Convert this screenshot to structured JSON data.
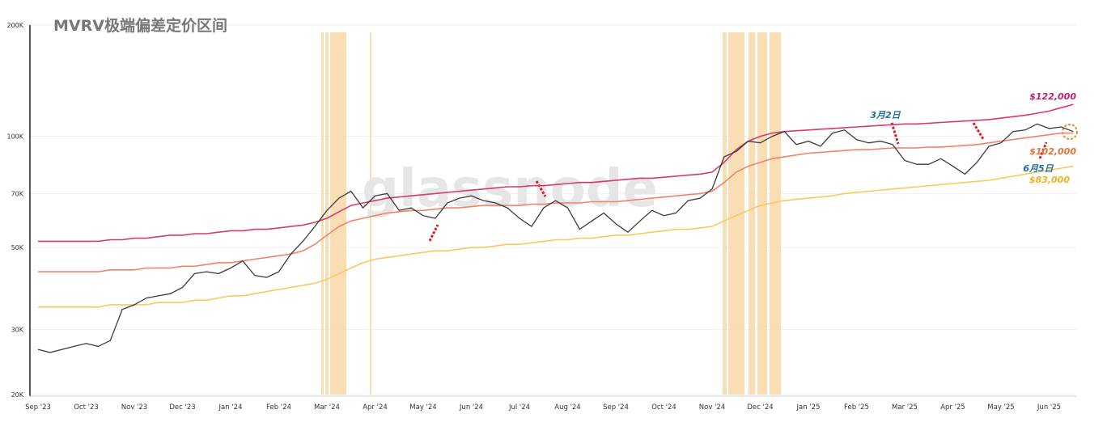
{
  "chart_data": {
    "type": "line",
    "title": "MVRV极端偏差定价区间",
    "watermark": "glassnode",
    "log_scale": true,
    "grid": true,
    "ylim": [
      20000,
      200000
    ],
    "yticks": [
      {
        "value": 20000,
        "label": "20K"
      },
      {
        "value": 30000,
        "label": "30K"
      },
      {
        "value": 50000,
        "label": "50K"
      },
      {
        "value": 70000,
        "label": "70K"
      },
      {
        "value": 100000,
        "label": "100K"
      },
      {
        "value": 200000,
        "label": "200K"
      }
    ],
    "categories": [
      "Sep '23",
      null,
      null,
      null,
      "Oct '23",
      null,
      null,
      null,
      "Nov '23",
      null,
      null,
      null,
      "Dec '23",
      null,
      null,
      null,
      "Jan '24",
      null,
      null,
      null,
      "Feb '24",
      null,
      null,
      null,
      "Mar '24",
      null,
      null,
      null,
      "Apr '24",
      null,
      null,
      null,
      "May '24",
      null,
      null,
      null,
      "Jun '24",
      null,
      null,
      null,
      "Jul '24",
      null,
      null,
      null,
      "Aug '24",
      null,
      null,
      null,
      "Sep '24",
      null,
      null,
      null,
      "Oct '24",
      null,
      null,
      null,
      "Nov '24",
      null,
      null,
      null,
      "Dec '24",
      null,
      null,
      null,
      "Jan '25",
      null,
      null,
      null,
      "Feb '25",
      null,
      null,
      null,
      "Mar '25",
      null,
      null,
      null,
      "Apr '25",
      null,
      null,
      null,
      "May '25",
      null,
      null,
      null,
      "Jun '25",
      null,
      null
    ],
    "series": [
      {
        "color": "#fbc860",
        "values": [
          34500,
          34500,
          34500,
          34500,
          34500,
          34500,
          35000,
          35000,
          35000,
          35000,
          35500,
          35500,
          35500,
          36000,
          36000,
          36500,
          37000,
          37000,
          37500,
          38000,
          38500,
          39000,
          39500,
          40000,
          41000,
          42500,
          44000,
          45500,
          46500,
          47000,
          47500,
          48000,
          48500,
          49000,
          49000,
          49500,
          50000,
          50000,
          50500,
          51000,
          51000,
          51500,
          52000,
          52500,
          52500,
          53000,
          53000,
          53500,
          54000,
          54000,
          54500,
          55000,
          55500,
          56000,
          56000,
          56500,
          57000,
          59000,
          61000,
          63000,
          65000,
          66000,
          67000,
          67500,
          68000,
          68500,
          69000,
          70000,
          70500,
          71000,
          71500,
          72000,
          72500,
          73000,
          73500,
          74000,
          74500,
          75000,
          75500,
          76000,
          77000,
          78000,
          79000,
          80000,
          81000,
          82000,
          83000
        ]
      },
      {
        "color": "#f0846a",
        "values": [
          43000,
          43000,
          43000,
          43000,
          43000,
          43000,
          43500,
          43500,
          43500,
          44000,
          44000,
          44000,
          44500,
          44500,
          45000,
          45500,
          45500,
          46000,
          46500,
          47000,
          47500,
          48000,
          49000,
          51000,
          54000,
          57000,
          59000,
          60000,
          61000,
          62000,
          62500,
          63000,
          63000,
          63500,
          64000,
          64000,
          64500,
          65000,
          65000,
          65000,
          65000,
          65500,
          65500,
          66000,
          66000,
          66000,
          66500,
          66500,
          66500,
          67000,
          67500,
          68000,
          68500,
          69000,
          69500,
          70000,
          71000,
          75000,
          80000,
          83000,
          85000,
          87000,
          88000,
          89000,
          90000,
          90500,
          91000,
          91500,
          92000,
          92000,
          92500,
          93000,
          93000,
          93000,
          93500,
          93500,
          94000,
          94500,
          95000,
          96000,
          97000,
          98000,
          99000,
          100000,
          101000,
          102000,
          102000
        ]
      },
      {
        "color": "#d93a6b",
        "values": [
          52000,
          52000,
          52000,
          52000,
          52000,
          52000,
          52500,
          52500,
          53000,
          53000,
          53500,
          54000,
          54000,
          54500,
          54500,
          55000,
          55500,
          55500,
          56000,
          56000,
          56500,
          57000,
          57500,
          58500,
          60000,
          62500,
          65000,
          66000,
          67000,
          68000,
          68500,
          69000,
          69500,
          70000,
          70500,
          71000,
          71500,
          72000,
          72500,
          73000,
          73000,
          73500,
          73500,
          74000,
          74500,
          75000,
          75000,
          75500,
          76000,
          76500,
          77000,
          77000,
          77500,
          78000,
          78500,
          79000,
          80000,
          85000,
          92000,
          97000,
          100000,
          102000,
          103000,
          103500,
          104000,
          104500,
          105000,
          105500,
          106000,
          106500,
          107000,
          107500,
          108000,
          108000,
          108500,
          109000,
          109500,
          110000,
          110500,
          111000,
          112000,
          113000,
          114000,
          115500,
          117000,
          119500,
          122000
        ]
      },
      {
        "color": "#3a3a3a",
        "values": [
          26500,
          26000,
          26500,
          27000,
          27500,
          27000,
          28000,
          34000,
          35000,
          36500,
          37000,
          37500,
          39000,
          42500,
          43000,
          42500,
          44000,
          46000,
          42000,
          41500,
          43000,
          48000,
          52000,
          57000,
          63000,
          68000,
          71000,
          64000,
          69000,
          70000,
          63000,
          64000,
          61000,
          60000,
          66000,
          68000,
          69000,
          67000,
          66000,
          64000,
          60000,
          57000,
          64000,
          67000,
          64000,
          56000,
          59000,
          62000,
          58000,
          55000,
          59000,
          63000,
          61000,
          62000,
          67000,
          68000,
          72000,
          88000,
          91000,
          97000,
          96000,
          100000,
          103000,
          95000,
          97000,
          94000,
          102000,
          104000,
          98000,
          96000,
          97000,
          95000,
          86000,
          84000,
          84000,
          87000,
          83000,
          79000,
          85000,
          94000,
          96000,
          103000,
          104000,
          108000,
          105000,
          106000,
          103000
        ]
      }
    ],
    "annotations": [
      {
        "text": "$122,000",
        "color": "#c8206a"
      },
      {
        "text": "$102,000",
        "color": "#e8703a"
      },
      {
        "text": "$83,000",
        "color": "#f0b020"
      },
      {
        "text": "3月2日",
        "color": "#1f6e99"
      },
      {
        "text": "6月5日",
        "color": "#1f6e99"
      }
    ]
  }
}
